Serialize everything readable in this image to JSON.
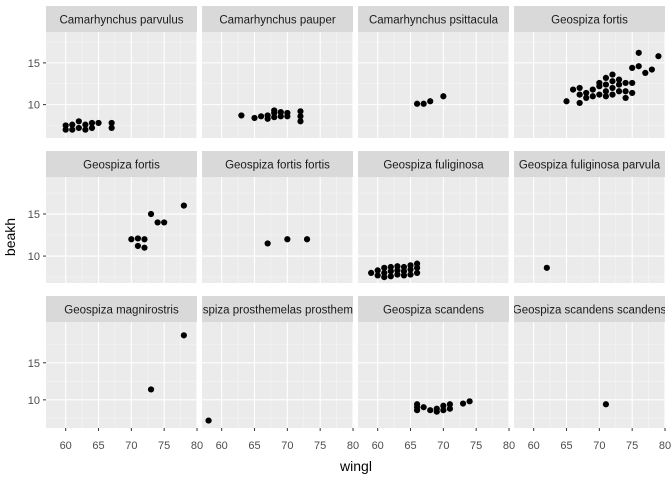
{
  "chart_data": {
    "type": "scatter",
    "xlabel": "wingl",
    "ylabel": "beakh",
    "xlim": [
      57,
      80
    ],
    "x_ticks": [
      60,
      65,
      70,
      75,
      80
    ],
    "colors": {
      "panel_bg": "#ebebeb",
      "strip_bg": "#d9d9d9",
      "grid_major": "#ffffff",
      "point": "#000000",
      "tick_text": "#4d4d4d"
    },
    "rows": [
      {
        "ylim": [
          6.0,
          18.7
        ],
        "y_ticks": [
          10,
          15
        ]
      },
      {
        "ylim": [
          6.8,
          19.4
        ],
        "y_ticks": [
          10,
          15
        ]
      },
      {
        "ylim": [
          6.2,
          20.5
        ],
        "y_ticks": [
          10,
          15
        ]
      }
    ],
    "panels": [
      {
        "title": "Camarhynchus parvulus",
        "points": [
          [
            60,
            7.0
          ],
          [
            60,
            7.5
          ],
          [
            61,
            7.0
          ],
          [
            61,
            7.6
          ],
          [
            62,
            8.0
          ],
          [
            62,
            7.2
          ],
          [
            63,
            7.0
          ],
          [
            63,
            7.6
          ],
          [
            64,
            7.2
          ],
          [
            64,
            7.8
          ],
          [
            65,
            7.8
          ],
          [
            67,
            7.2
          ],
          [
            67,
            7.8
          ]
        ]
      },
      {
        "title": "Camarhynchus pauper",
        "points": [
          [
            63,
            8.7
          ],
          [
            65,
            8.4
          ],
          [
            66,
            8.6
          ],
          [
            67,
            8.3
          ],
          [
            67,
            8.7
          ],
          [
            68,
            8.5
          ],
          [
            68,
            9.0
          ],
          [
            68,
            9.3
          ],
          [
            69,
            8.6
          ],
          [
            69,
            9.1
          ],
          [
            70,
            8.6
          ],
          [
            70,
            9.0
          ],
          [
            72,
            8.0
          ],
          [
            72,
            8.6
          ],
          [
            72,
            9.2
          ]
        ]
      },
      {
        "title": "Camarhynchus psittacula",
        "points": [
          [
            66,
            10.1
          ],
          [
            67,
            10.1
          ],
          [
            68,
            10.4
          ],
          [
            70,
            11.0
          ]
        ]
      },
      {
        "title": "Geospiza fortis",
        "points": [
          [
            65,
            10.4
          ],
          [
            66,
            11.8
          ],
          [
            67,
            10.2
          ],
          [
            67,
            11.2
          ],
          [
            67,
            12.0
          ],
          [
            68,
            10.8
          ],
          [
            68,
            11.4
          ],
          [
            69,
            11.0
          ],
          [
            69,
            11.8
          ],
          [
            70,
            11.2
          ],
          [
            70,
            12.2
          ],
          [
            70,
            12.6
          ],
          [
            71,
            11.0
          ],
          [
            71,
            11.6
          ],
          [
            71,
            12.4
          ],
          [
            71,
            13.2
          ],
          [
            72,
            11.2
          ],
          [
            72,
            12.0
          ],
          [
            72,
            12.8
          ],
          [
            72,
            13.6
          ],
          [
            73,
            11.6
          ],
          [
            73,
            12.4
          ],
          [
            73,
            13.0
          ],
          [
            74,
            10.8
          ],
          [
            74,
            11.6
          ],
          [
            74,
            12.6
          ],
          [
            75,
            11.4
          ],
          [
            75,
            12.6
          ],
          [
            75,
            14.4
          ],
          [
            76,
            14.6
          ],
          [
            76,
            16.2
          ],
          [
            77,
            13.8
          ],
          [
            78,
            14.2
          ],
          [
            79,
            15.8
          ]
        ]
      },
      {
        "title": "Geospiza fortis",
        "points": [
          [
            70,
            12.0
          ],
          [
            71,
            11.2
          ],
          [
            71,
            12.1
          ],
          [
            72,
            11.0
          ],
          [
            72,
            12.0
          ],
          [
            73,
            15.0
          ],
          [
            74,
            14.0
          ],
          [
            75,
            14.0
          ],
          [
            78,
            16.0
          ]
        ]
      },
      {
        "title": "Geospiza fortis fortis",
        "points": [
          [
            67,
            11.5
          ],
          [
            70,
            12.0
          ],
          [
            73,
            12.0
          ]
        ]
      },
      {
        "title": "Geospiza fuliginosa",
        "points": [
          [
            59,
            8.0
          ],
          [
            60,
            7.7
          ],
          [
            60,
            8.3
          ],
          [
            61,
            7.5
          ],
          [
            61,
            8.0
          ],
          [
            61,
            8.6
          ],
          [
            62,
            7.6
          ],
          [
            62,
            8.2
          ],
          [
            62,
            8.7
          ],
          [
            63,
            7.8
          ],
          [
            63,
            8.3
          ],
          [
            63,
            8.8
          ],
          [
            64,
            7.7
          ],
          [
            64,
            8.2
          ],
          [
            64,
            8.7
          ],
          [
            65,
            7.8
          ],
          [
            65,
            8.4
          ],
          [
            65,
            8.9
          ],
          [
            66,
            8.0
          ],
          [
            66,
            8.6
          ],
          [
            66,
            9.1
          ]
        ]
      },
      {
        "title": "Geospiza fuliginosa parvula",
        "points": [
          [
            62,
            8.6
          ]
        ]
      },
      {
        "title": "Geospiza magnirostris",
        "points": [
          [
            73,
            11.4
          ],
          [
            78,
            18.7
          ]
        ]
      },
      {
        "title": "Geospiza prosthemelas prosthemelas",
        "points": [
          [
            58,
            7.2
          ]
        ]
      },
      {
        "title": "Geospiza scandens",
        "points": [
          [
            66,
            8.6
          ],
          [
            66,
            9.0
          ],
          [
            66,
            9.4
          ],
          [
            67,
            9.0
          ],
          [
            68,
            8.6
          ],
          [
            69,
            8.4
          ],
          [
            69,
            8.8
          ],
          [
            70,
            8.6
          ],
          [
            70,
            9.2
          ],
          [
            71,
            8.8
          ],
          [
            71,
            9.4
          ],
          [
            73,
            9.5
          ],
          [
            74,
            9.8
          ]
        ]
      },
      {
        "title": "Geospiza scandens scandens",
        "points": [
          [
            71,
            9.4
          ]
        ]
      }
    ]
  }
}
